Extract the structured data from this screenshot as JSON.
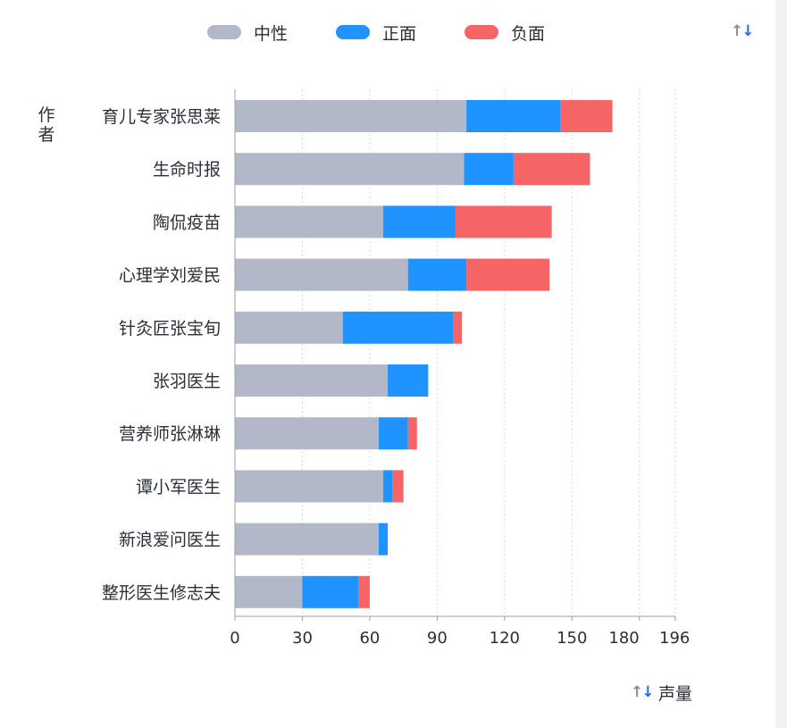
{
  "legend": {
    "items": [
      {
        "label": "中性",
        "color": "#b2b8c8"
      },
      {
        "label": "正面",
        "color": "#1f93ff"
      },
      {
        "label": "负面",
        "color": "#f56565"
      }
    ]
  },
  "chart_data": {
    "type": "bar",
    "orientation": "horizontal",
    "stacked": true,
    "categories": [
      "育儿专家张思莱",
      "生命时报",
      "陶侃疫苗",
      "心理学刘爱民",
      "针灸匠张宝旬",
      "张羽医生",
      "营养师张淋琳",
      "谭小军医生",
      "新浪爱问医生",
      "整形医生修志夫"
    ],
    "series": [
      {
        "name": "中性",
        "color": "#b2b8c8",
        "values": [
          103,
          102,
          66,
          77,
          48,
          68,
          64,
          66,
          64,
          30
        ]
      },
      {
        "name": "正面",
        "color": "#1f93ff",
        "values": [
          42,
          22,
          32,
          26,
          49,
          18,
          13,
          4,
          4,
          25
        ]
      },
      {
        "name": "负面",
        "color": "#f56565",
        "values": [
          23,
          34,
          43,
          37,
          4,
          0,
          4,
          5,
          0,
          5
        ]
      }
    ],
    "xlabel": "声量",
    "ylabel": "作者",
    "xlim": [
      0,
      196
    ],
    "xticks": [
      0,
      30,
      60,
      90,
      120,
      150,
      180,
      196
    ],
    "grid": true,
    "legend_position": "top"
  }
}
